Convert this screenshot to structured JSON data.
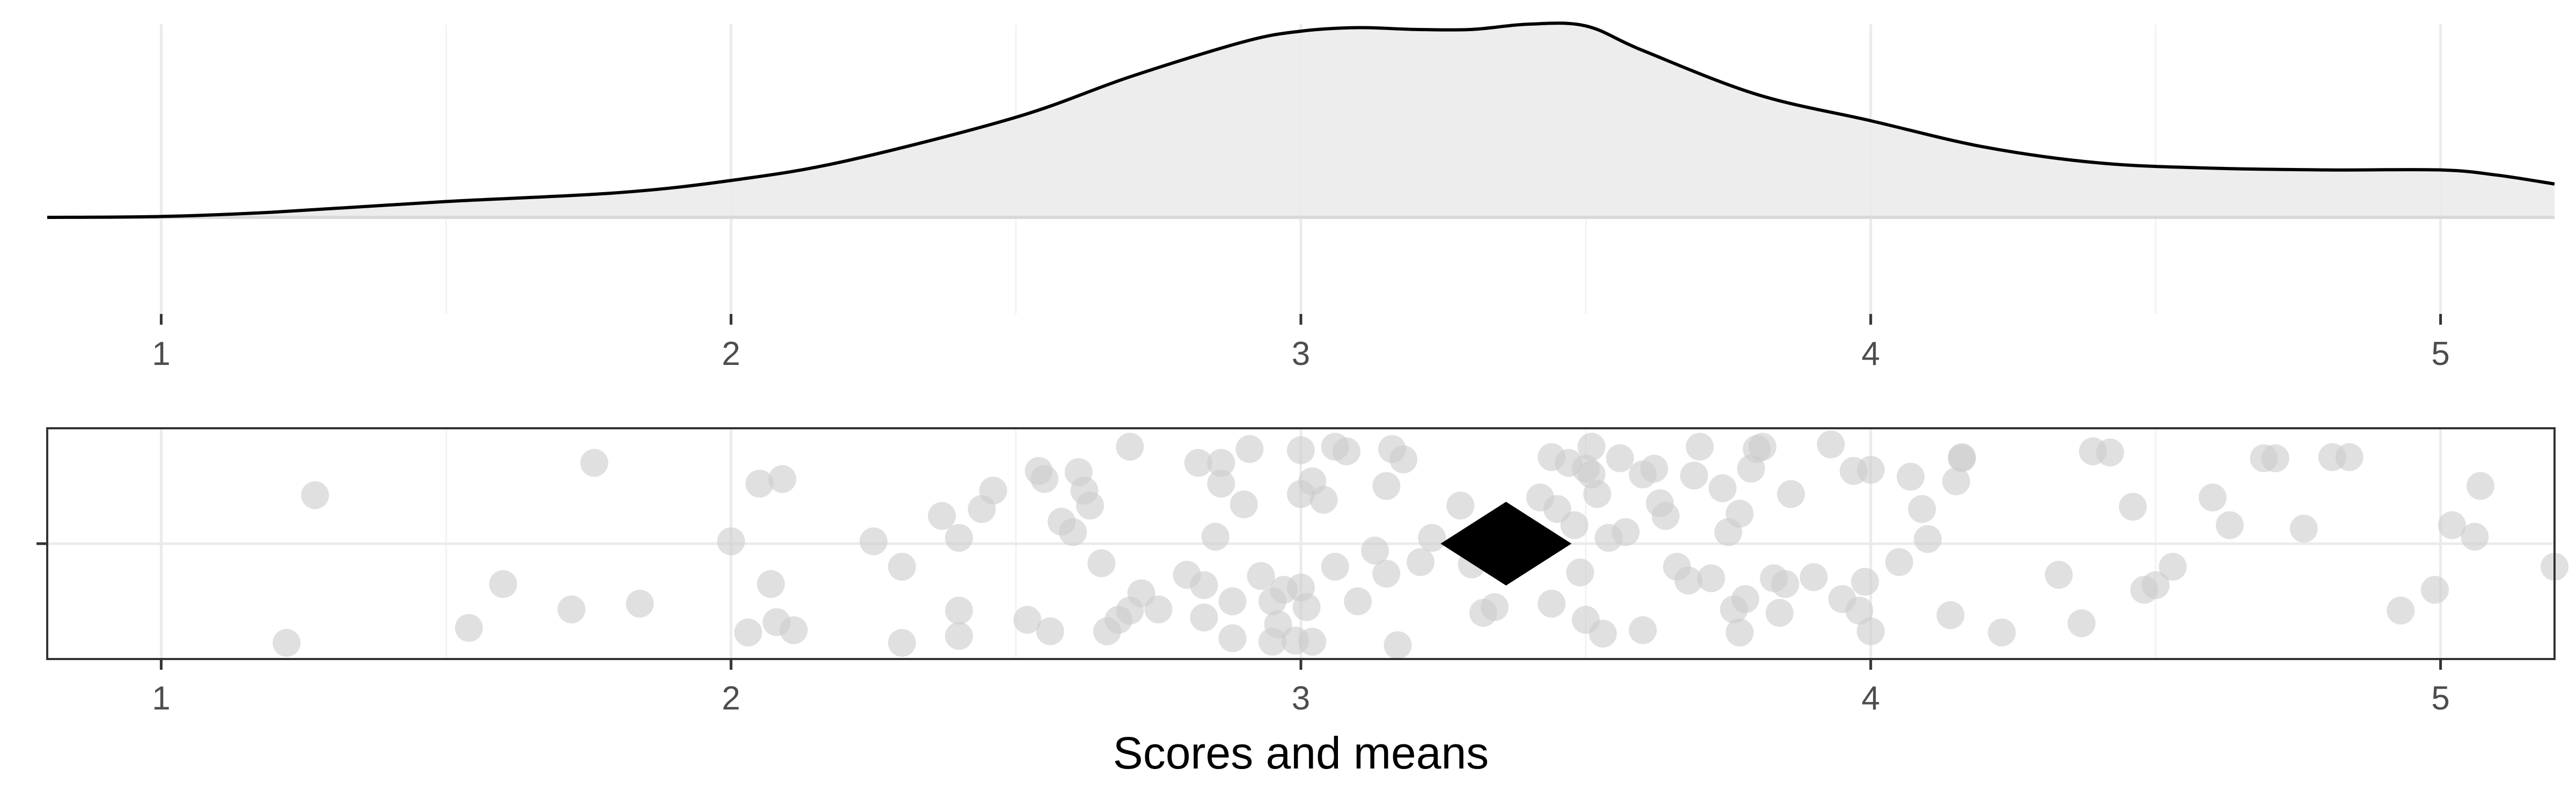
{
  "chart_data": [
    {
      "type": "area",
      "title": "",
      "xlabel": "",
      "ylabel": "",
      "xlim": [
        0.8,
        5.2
      ],
      "x_ticks": [
        "1",
        "2",
        "3",
        "4",
        "5"
      ],
      "grid": true,
      "fill_color": "#ebebeb",
      "line_color": "#000000",
      "density": {
        "x": [
          0.8,
          1.0,
          1.2,
          1.5,
          1.8,
          2.0,
          2.2,
          2.5,
          2.7,
          2.9,
          3.0,
          3.1,
          3.2,
          3.3,
          3.4,
          3.5,
          3.6,
          3.8,
          4.0,
          4.2,
          4.4,
          4.6,
          4.8,
          5.0,
          5.1,
          5.2
        ],
        "y": [
          0.0,
          0.005,
          0.03,
          0.09,
          0.14,
          0.21,
          0.32,
          0.57,
          0.8,
          1.0,
          1.06,
          1.08,
          1.07,
          1.07,
          1.1,
          1.09,
          0.95,
          0.7,
          0.55,
          0.4,
          0.31,
          0.28,
          0.27,
          0.27,
          0.24,
          0.19
        ]
      }
    },
    {
      "type": "scatter",
      "title": "",
      "xlabel": "Scores and means",
      "xlim": [
        0.8,
        5.2
      ],
      "x_ticks": [
        "1",
        "2",
        "3",
        "4",
        "5"
      ],
      "y_ticks": [
        ""
      ],
      "grid": true,
      "point_color": "#cccccc",
      "mean_marker": "diamond",
      "mean_color": "#000000",
      "mean": 3.36,
      "points": [
        [
          1.22,
          -0.86
        ],
        [
          1.27,
          0.42
        ],
        [
          1.54,
          -0.73
        ],
        [
          1.6,
          -0.35
        ],
        [
          1.72,
          -0.57
        ],
        [
          1.76,
          0.7
        ],
        [
          1.84,
          -0.52
        ],
        [
          2.0,
          0.02
        ],
        [
          2.03,
          -0.77
        ],
        [
          2.05,
          0.52
        ],
        [
          2.07,
          -0.35
        ],
        [
          2.08,
          -0.68
        ],
        [
          2.09,
          0.56
        ],
        [
          2.11,
          -0.75
        ],
        [
          2.25,
          0.02
        ],
        [
          2.3,
          -0.2
        ],
        [
          2.3,
          -0.86
        ],
        [
          2.37,
          0.24
        ],
        [
          2.4,
          0.05
        ],
        [
          2.4,
          -0.58
        ],
        [
          2.4,
          -0.8
        ],
        [
          2.44,
          0.3
        ],
        [
          2.46,
          0.46
        ],
        [
          2.52,
          -0.66
        ],
        [
          2.54,
          0.63
        ],
        [
          2.55,
          0.56
        ],
        [
          2.56,
          -0.76
        ],
        [
          2.58,
          0.19
        ],
        [
          2.6,
          0.1
        ],
        [
          2.61,
          0.62
        ],
        [
          2.62,
          0.46
        ],
        [
          2.63,
          0.33
        ],
        [
          2.65,
          -0.17
        ],
        [
          2.66,
          -0.76
        ],
        [
          2.68,
          -0.66
        ],
        [
          2.7,
          -0.58
        ],
        [
          2.7,
          0.84
        ],
        [
          2.72,
          -0.43
        ],
        [
          2.75,
          -0.57
        ],
        [
          2.8,
          -0.27
        ],
        [
          2.82,
          0.7
        ],
        [
          2.83,
          -0.64
        ],
        [
          2.83,
          -0.36
        ],
        [
          2.85,
          0.06
        ],
        [
          2.86,
          0.7
        ],
        [
          2.86,
          0.52
        ],
        [
          2.88,
          -0.5
        ],
        [
          2.88,
          -0.82
        ],
        [
          2.9,
          0.34
        ],
        [
          2.91,
          0.82
        ],
        [
          2.93,
          -0.28
        ],
        [
          2.95,
          -0.5
        ],
        [
          2.95,
          -0.85
        ],
        [
          2.96,
          -0.7
        ],
        [
          2.97,
          -0.4
        ],
        [
          2.99,
          -0.84
        ],
        [
          3.0,
          0.81
        ],
        [
          3.0,
          0.43
        ],
        [
          3.0,
          -0.38
        ],
        [
          3.01,
          -0.55
        ],
        [
          3.02,
          0.54
        ],
        [
          3.02,
          -0.85
        ],
        [
          3.04,
          0.38
        ],
        [
          3.06,
          -0.2
        ],
        [
          3.06,
          0.84
        ],
        [
          3.08,
          0.8
        ],
        [
          3.1,
          -0.5
        ],
        [
          3.13,
          -0.06
        ],
        [
          3.15,
          0.5
        ],
        [
          3.15,
          -0.26
        ],
        [
          3.16,
          0.82
        ],
        [
          3.17,
          -0.88
        ],
        [
          3.18,
          0.73
        ],
        [
          3.21,
          -0.16
        ],
        [
          3.23,
          0.05
        ],
        [
          3.28,
          0.33
        ],
        [
          3.3,
          -0.18
        ],
        [
          3.32,
          -0.6
        ],
        [
          3.34,
          -0.55
        ],
        [
          3.42,
          0.4
        ],
        [
          3.44,
          0.75
        ],
        [
          3.44,
          -0.52
        ],
        [
          3.45,
          0.3
        ],
        [
          3.47,
          0.7
        ],
        [
          3.48,
          0.16
        ],
        [
          3.49,
          -0.25
        ],
        [
          3.5,
          0.65
        ],
        [
          3.5,
          -0.66
        ],
        [
          3.51,
          0.84
        ],
        [
          3.51,
          0.6
        ],
        [
          3.52,
          0.43
        ],
        [
          3.53,
          -0.78
        ],
        [
          3.54,
          0.05
        ],
        [
          3.56,
          0.74
        ],
        [
          3.57,
          0.1
        ],
        [
          3.6,
          0.6
        ],
        [
          3.6,
          -0.75
        ],
        [
          3.62,
          0.65
        ],
        [
          3.63,
          0.35
        ],
        [
          3.64,
          0.24
        ],
        [
          3.66,
          -0.2
        ],
        [
          3.68,
          -0.32
        ],
        [
          3.69,
          0.59
        ],
        [
          3.7,
          0.84
        ],
        [
          3.72,
          -0.3
        ],
        [
          3.74,
          0.48
        ],
        [
          3.75,
          0.1
        ],
        [
          3.76,
          -0.57
        ],
        [
          3.77,
          0.26
        ],
        [
          3.77,
          -0.77
        ],
        [
          3.78,
          -0.48
        ],
        [
          3.79,
          0.65
        ],
        [
          3.8,
          0.82
        ],
        [
          3.81,
          0.84
        ],
        [
          3.83,
          -0.3
        ],
        [
          3.84,
          -0.6
        ],
        [
          3.85,
          -0.35
        ],
        [
          3.86,
          0.43
        ],
        [
          3.9,
          -0.29
        ],
        [
          3.93,
          0.86
        ],
        [
          3.95,
          -0.48
        ],
        [
          3.97,
          0.63
        ],
        [
          3.98,
          -0.58
        ],
        [
          3.99,
          -0.33
        ],
        [
          4.0,
          -0.76
        ],
        [
          4.0,
          0.64
        ],
        [
          4.05,
          -0.16
        ],
        [
          4.07,
          0.58
        ],
        [
          4.09,
          0.3
        ],
        [
          4.1,
          0.04
        ],
        [
          4.14,
          -0.62
        ],
        [
          4.15,
          0.54
        ],
        [
          4.16,
          0.75
        ],
        [
          4.16,
          0.74
        ],
        [
          4.23,
          -0.77
        ],
        [
          4.33,
          -0.27
        ],
        [
          4.37,
          -0.69
        ],
        [
          4.39,
          0.8
        ],
        [
          4.42,
          0.79
        ],
        [
          4.46,
          0.32
        ],
        [
          4.48,
          -0.4
        ],
        [
          4.5,
          -0.36
        ],
        [
          4.53,
          -0.2
        ],
        [
          4.6,
          0.4
        ],
        [
          4.63,
          0.16
        ],
        [
          4.69,
          0.74
        ],
        [
          4.71,
          0.74
        ],
        [
          4.76,
          0.13
        ],
        [
          4.81,
          0.75
        ],
        [
          4.84,
          0.75
        ],
        [
          4.93,
          -0.58
        ],
        [
          4.99,
          -0.4
        ],
        [
          5.02,
          0.16
        ],
        [
          5.06,
          0.06
        ],
        [
          5.07,
          0.5
        ],
        [
          5.2,
          -0.2
        ]
      ]
    }
  ]
}
